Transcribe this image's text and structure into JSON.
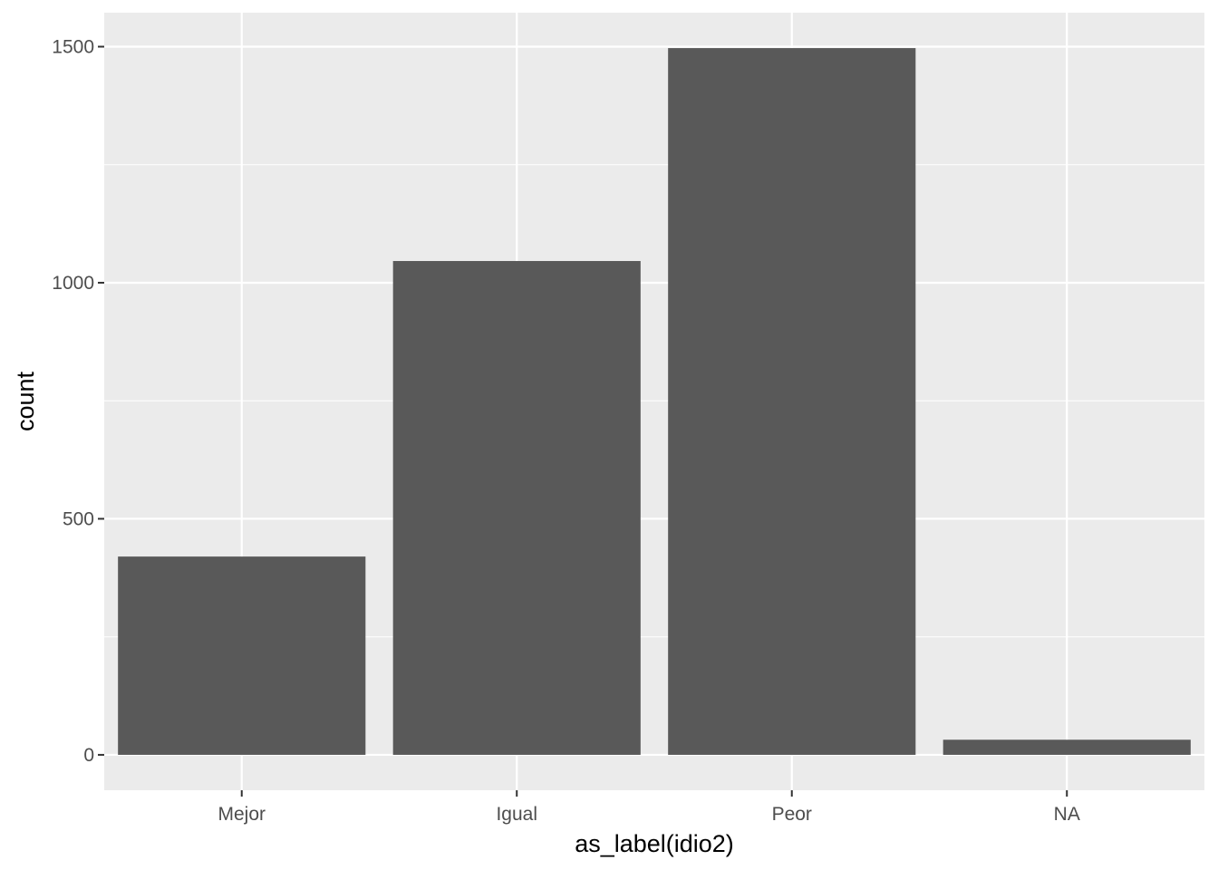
{
  "chart_data": {
    "type": "bar",
    "title": "",
    "xlabel": "as_label(idio2)",
    "ylabel": "count",
    "categories": [
      "Mejor",
      "Igual",
      "Peor",
      "NA"
    ],
    "values": [
      420,
      1046,
      1497,
      32
    ],
    "ylim": [
      -75,
      1572
    ],
    "yticks": [
      0,
      500,
      1000,
      1500
    ],
    "yminor": [
      250,
      750,
      1250
    ],
    "ytick_labels": [
      "0",
      "500",
      "1000",
      "1500"
    ],
    "grid": true,
    "legend": "none",
    "colors": {
      "bar": "#595959",
      "panel": "#ebebeb",
      "grid": "#ffffff",
      "tick": "#333333"
    }
  }
}
